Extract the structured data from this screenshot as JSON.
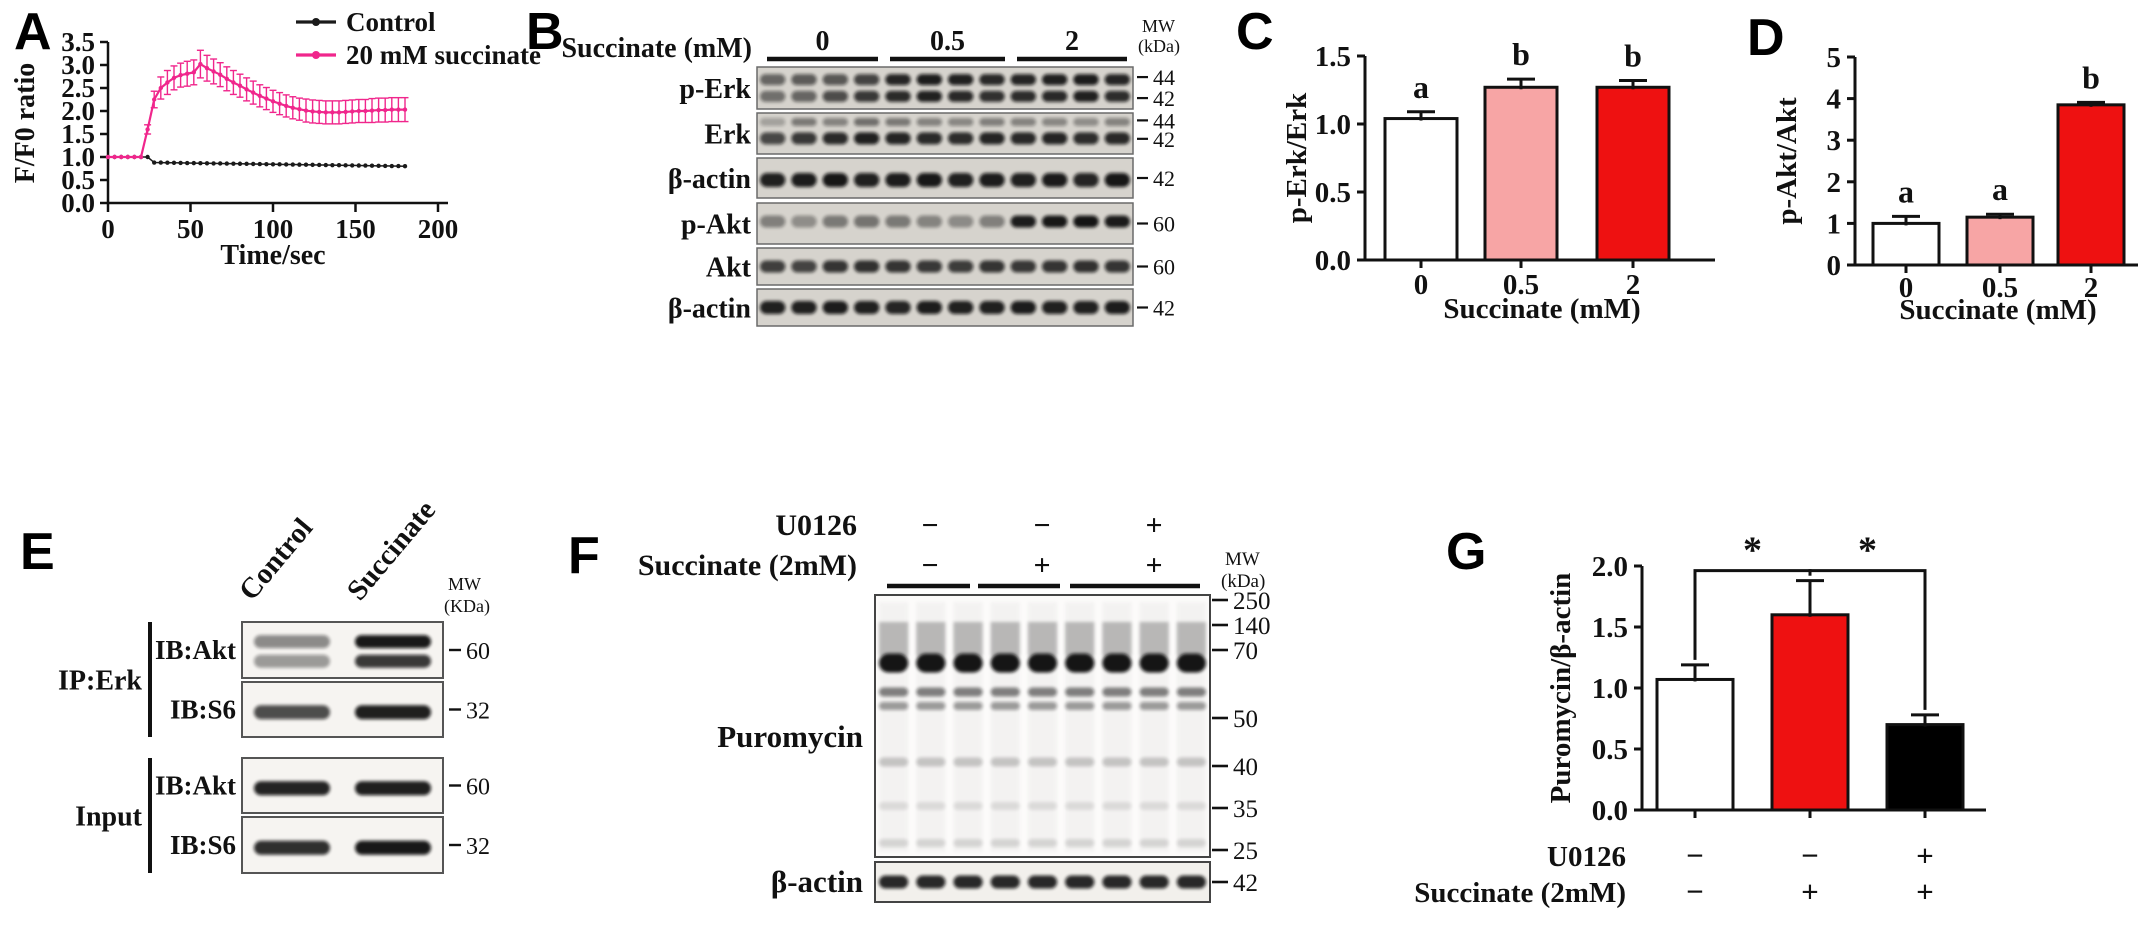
{
  "figure_bg": "#ffffff",
  "colors": {
    "succinate_line": "#f0268c",
    "control_line": "#1a1a1a",
    "bar_white": "#ffffff",
    "bar_pink": "#f7a5a5",
    "bar_red": "#ee1111",
    "bar_black": "#000000",
    "axis": "#111111",
    "blot_bg_gray": "#d6d3cd",
    "blot_bg_light": "#fcfbfa"
  },
  "panels": {
    "A": {
      "letter": "A"
    },
    "B": {
      "letter": "B",
      "header": "Succinate (mM)",
      "groups": [
        "0",
        "0.5",
        "2"
      ],
      "mw_unit": [
        "MW",
        "(kDa)"
      ],
      "lanes": 12,
      "rows": [
        {
          "target": "p-Erk",
          "mw": [
            {
              "t": "44",
              "pos": 0.24
            },
            {
              "t": "42",
              "pos": 0.74
            }
          ],
          "sub_bands": [
            {
              "pos": 0.3,
              "h": 11,
              "lanes": [
                0.55,
                0.6,
                0.62,
                0.72,
                0.88,
                0.92,
                0.9,
                0.86,
                0.88,
                0.9,
                0.92,
                0.88
              ]
            },
            {
              "pos": 0.7,
              "h": 11,
              "lanes": [
                0.5,
                0.55,
                0.68,
                0.78,
                0.85,
                0.9,
                0.86,
                0.82,
                0.84,
                0.86,
                0.9,
                0.84
              ]
            }
          ]
        },
        {
          "target": "Erk",
          "mw": [
            {
              "t": "44",
              "pos": 0.18
            },
            {
              "t": "42",
              "pos": 0.63
            }
          ],
          "sub_bands": [
            {
              "pos": 0.22,
              "h": 8,
              "lanes": [
                0.25,
                0.45,
                0.4,
                0.5,
                0.45,
                0.4,
                0.38,
                0.42,
                0.4,
                0.38,
                0.35,
                0.4
              ]
            },
            {
              "pos": 0.62,
              "h": 12,
              "lanes": [
                0.7,
                0.78,
                0.85,
                0.9,
                0.88,
                0.85,
                0.84,
                0.88,
                0.86,
                0.88,
                0.84,
                0.86
              ]
            }
          ]
        },
        {
          "target": "β-actin",
          "mw": [
            {
              "t": "42",
              "pos": 0.5
            }
          ],
          "sub_bands": [
            {
              "pos": 0.55,
              "h": 14,
              "lanes": [
                0.9,
                0.92,
                0.95,
                0.9,
                0.92,
                0.94,
                0.9,
                0.92,
                0.9,
                0.93,
                0.88,
                0.95
              ]
            }
          ]
        },
        {
          "target": "p-Akt",
          "mw": [
            {
              "t": "60",
              "pos": 0.5
            }
          ],
          "sub_bands": [
            {
              "pos": 0.45,
              "h": 12,
              "lanes": [
                0.42,
                0.35,
                0.45,
                0.48,
                0.45,
                0.4,
                0.36,
                0.42,
                0.92,
                0.95,
                0.96,
                0.93
              ]
            }
          ]
        },
        {
          "target": "Akt",
          "mw": [
            {
              "t": "60",
              "pos": 0.5
            }
          ],
          "sub_bands": [
            {
              "pos": 0.5,
              "h": 12,
              "lanes": [
                0.75,
                0.72,
                0.8,
                0.82,
                0.8,
                0.78,
                0.76,
                0.8,
                0.78,
                0.8,
                0.82,
                0.8
              ]
            }
          ]
        },
        {
          "target": "β-actin",
          "mw": [
            {
              "t": "42",
              "pos": 0.5
            }
          ],
          "sub_bands": [
            {
              "pos": 0.5,
              "h": 13,
              "lanes": [
                0.9,
                0.9,
                0.92,
                0.9,
                0.88,
                0.92,
                0.9,
                0.9,
                0.92,
                0.9,
                0.9,
                0.92
              ]
            }
          ]
        }
      ]
    },
    "E": {
      "letter": "E",
      "columns": [
        "Control",
        "Succinate"
      ],
      "mw_unit": [
        "MW",
        "(KDa)"
      ],
      "groups": [
        {
          "name": "IP:Erk",
          "rows": [
            {
              "target": "IB:Akt",
              "mw": "60",
              "double": true,
              "lanes": [
                0.45,
                0.95
              ]
            },
            {
              "target": "IB:S6",
              "mw": "32",
              "double": false,
              "lanes": [
                0.72,
                0.92
              ]
            }
          ]
        },
        {
          "name": "Input",
          "rows": [
            {
              "target": "IB:Akt",
              "mw": "60",
              "double": false,
              "lanes": [
                0.9,
                0.92
              ]
            },
            {
              "target": "IB:S6",
              "mw": "32",
              "double": false,
              "lanes": [
                0.85,
                0.95
              ]
            }
          ]
        }
      ]
    },
    "F": {
      "letter": "F",
      "conditions": [
        {
          "name": "U0126",
          "values": [
            "−",
            "−",
            "+"
          ]
        },
        {
          "name": "Succinate (2mM)",
          "values": [
            "−",
            "+",
            "+"
          ]
        }
      ],
      "mw_unit": [
        "MW",
        "(kDa)"
      ],
      "blot_label": "Puromycin",
      "mw_marks": [
        "250",
        "140",
        "70",
        "50",
        "40",
        "35",
        "25"
      ],
      "actin": {
        "label": "β-actin",
        "mw": "42"
      },
      "lanes": 9
    },
    "G": {
      "letter": "G"
    },
    "C_letter": "C",
    "D_letter": "D"
  },
  "chart_data": [
    {
      "id": "A",
      "type": "line",
      "title": "",
      "xlabel": "Time/sec",
      "ylabel": "F/F0 ratio",
      "xlim": [
        0,
        200
      ],
      "ylim": [
        0,
        3.5
      ],
      "xticks": [
        0,
        50,
        100,
        150,
        200
      ],
      "xtick_labels": [
        "0",
        "50",
        "100",
        "150",
        "200"
      ],
      "yticks": [
        0,
        0.5,
        1,
        1.5,
        2,
        2.5,
        3,
        3.5
      ],
      "ytick_labels": [
        "0.0",
        "0.5",
        "1.0",
        "1.5",
        "2.0",
        "2.5",
        "3.0",
        "3.5"
      ],
      "legend_position": "top-right",
      "grid": false,
      "series": [
        {
          "name": "Control",
          "color": "#1a1a1a",
          "x": [
            0,
            4,
            8,
            12,
            16,
            20,
            24,
            28,
            32,
            36,
            40,
            44,
            48,
            52,
            56,
            60,
            64,
            68,
            72,
            76,
            80,
            84,
            88,
            92,
            96,
            100,
            104,
            108,
            112,
            116,
            120,
            124,
            128,
            132,
            136,
            140,
            144,
            148,
            152,
            156,
            160,
            164,
            168,
            172,
            176,
            180
          ],
          "y": [
            1.0,
            1.0,
            1.0,
            1.0,
            1.0,
            1.0,
            1.0,
            0.88,
            0.878,
            0.876,
            0.874,
            0.872,
            0.869,
            0.867,
            0.865,
            0.863,
            0.861,
            0.859,
            0.857,
            0.855,
            0.853,
            0.851,
            0.848,
            0.846,
            0.844,
            0.842,
            0.84,
            0.838,
            0.836,
            0.834,
            0.832,
            0.829,
            0.827,
            0.825,
            0.823,
            0.821,
            0.819,
            0.817,
            0.815,
            0.813,
            0.811,
            0.808,
            0.806,
            0.804,
            0.802,
            0.8
          ]
        },
        {
          "name": "20 mM succinate",
          "color": "#f0268c",
          "x": [
            0,
            4,
            8,
            12,
            16,
            20,
            24,
            28,
            32,
            36,
            40,
            44,
            48,
            52,
            56,
            60,
            64,
            68,
            72,
            76,
            80,
            84,
            88,
            92,
            96,
            100,
            104,
            108,
            112,
            116,
            120,
            124,
            128,
            132,
            136,
            140,
            144,
            148,
            152,
            156,
            160,
            164,
            168,
            172,
            176,
            180
          ],
          "y": [
            1.0,
            1.0,
            1.0,
            1.0,
            1.0,
            1.0,
            1.6,
            2.25,
            2.5,
            2.62,
            2.72,
            2.78,
            2.81,
            2.84,
            3.02,
            2.93,
            2.86,
            2.79,
            2.7,
            2.62,
            2.55,
            2.47,
            2.4,
            2.33,
            2.27,
            2.21,
            2.16,
            2.11,
            2.07,
            2.04,
            2.01,
            1.99,
            1.98,
            1.97,
            1.97,
            1.97,
            1.98,
            1.99,
            2.0,
            2.0,
            2.01,
            2.02,
            2.02,
            2.03,
            2.03,
            2.03
          ],
          "yerr": [
            0,
            0,
            0,
            0,
            0,
            0,
            0.1,
            0.18,
            0.24,
            0.26,
            0.26,
            0.26,
            0.27,
            0.27,
            0.3,
            0.28,
            0.27,
            0.26,
            0.26,
            0.26,
            0.25,
            0.25,
            0.25,
            0.24,
            0.24,
            0.24,
            0.24,
            0.24,
            0.24,
            0.24,
            0.25,
            0.25,
            0.25,
            0.25,
            0.25,
            0.25,
            0.25,
            0.25,
            0.25,
            0.25,
            0.26,
            0.26,
            0.26,
            0.26,
            0.26,
            0.26
          ]
        }
      ]
    },
    {
      "id": "C",
      "type": "bar",
      "ylabel": "p-Erk/Erk",
      "xlabel": "Succinate (mM)",
      "categories": [
        "0",
        "0.5",
        "2"
      ],
      "values": [
        1.04,
        1.27,
        1.27
      ],
      "errors": [
        0.05,
        0.06,
        0.05
      ],
      "bar_colors": [
        "white",
        "pink",
        "red"
      ],
      "sig_letters": [
        "a",
        "b",
        "b"
      ],
      "ylim": [
        0,
        1.5
      ],
      "yticks": [
        0,
        0.5,
        1,
        1.5
      ],
      "ytick_labels": [
        "0.0",
        "0.5",
        "1.0",
        "1.5"
      ]
    },
    {
      "id": "D",
      "type": "bar",
      "ylabel": "p-Akt/Akt",
      "xlabel": "Succinate (mM)",
      "categories": [
        "0",
        "0.5",
        "2"
      ],
      "values": [
        1.0,
        1.15,
        3.85
      ],
      "errors": [
        0.17,
        0.07,
        0.06
      ],
      "bar_colors": [
        "white",
        "pink",
        "red"
      ],
      "sig_letters": [
        "a",
        "a",
        "b"
      ],
      "ylim": [
        0,
        5
      ],
      "yticks": [
        0,
        1,
        2,
        3,
        4,
        5
      ],
      "ytick_labels": [
        "0",
        "1",
        "2",
        "3",
        "4",
        "5"
      ]
    },
    {
      "id": "G",
      "type": "bar",
      "ylabel": "Puromycin/β-actin",
      "values": [
        1.07,
        1.6,
        0.7
      ],
      "errors": [
        0.12,
        0.28,
        0.08
      ],
      "bar_colors": [
        "white",
        "red",
        "black"
      ],
      "ylim": [
        0,
        2
      ],
      "yticks": [
        0,
        0.5,
        1,
        1.5,
        2
      ],
      "ytick_labels": [
        "0.0",
        "0.5",
        "1.0",
        "1.5",
        "2.0"
      ],
      "condition_rows": [
        {
          "name": "U0126",
          "values": [
            "−",
            "−",
            "+"
          ]
        },
        {
          "name": "Succinate (2mM)",
          "values": [
            "−",
            "+",
            "+"
          ]
        }
      ],
      "sig_brackets": [
        {
          "from": 0,
          "to": 1,
          "label": "*"
        },
        {
          "from": 1,
          "to": 2,
          "label": "*"
        }
      ]
    }
  ]
}
